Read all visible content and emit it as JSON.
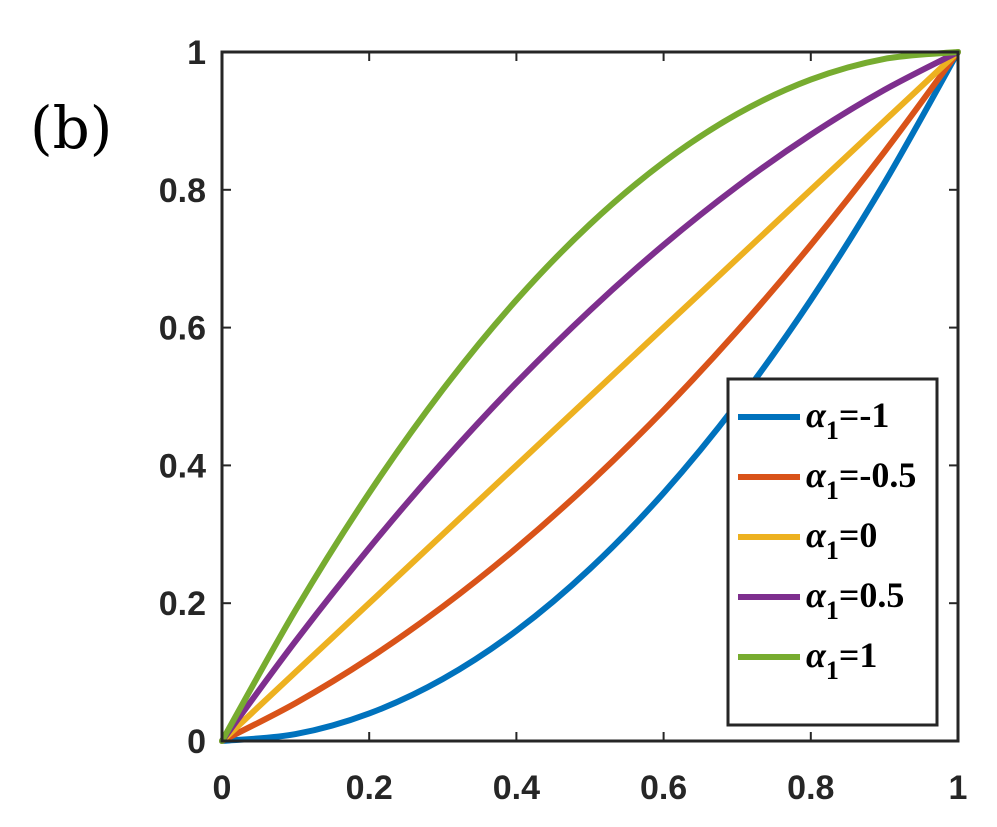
{
  "panel_label": "(b)",
  "chart_data": {
    "type": "line",
    "title": "",
    "xlabel": "",
    "ylabel": "",
    "xlim": [
      0,
      1
    ],
    "ylim": [
      0,
      1
    ],
    "x_ticks": [
      "0",
      "0.2",
      "0.4",
      "0.6",
      "0.8",
      "1"
    ],
    "y_ticks": [
      "0",
      "0.2",
      "0.4",
      "0.6",
      "0.8",
      "1"
    ],
    "grid": false,
    "legend_position": "bottom-right",
    "x": [
      0,
      0.1,
      0.2,
      0.3,
      0.4,
      0.5,
      0.6,
      0.7,
      0.8,
      0.9,
      1.0
    ],
    "series": [
      {
        "name": "α₁=-1",
        "legend_symbol": "α",
        "legend_subscript": "1",
        "legend_value": "=-1",
        "color": "#0072BD",
        "values": [
          0,
          0.01,
          0.04,
          0.09,
          0.16,
          0.25,
          0.36,
          0.49,
          0.64,
          0.81,
          1.0
        ]
      },
      {
        "name": "α₁=-0.5",
        "legend_symbol": "α",
        "legend_subscript": "1",
        "legend_value": "=-0.5",
        "color": "#D95319",
        "values": [
          0,
          0.055,
          0.12,
          0.195,
          0.28,
          0.375,
          0.48,
          0.595,
          0.72,
          0.855,
          1.0
        ]
      },
      {
        "name": "α₁=0",
        "legend_symbol": "α",
        "legend_subscript": "1",
        "legend_value": "=0",
        "color": "#EDB120",
        "values": [
          0,
          0.1,
          0.2,
          0.3,
          0.4,
          0.5,
          0.6,
          0.7,
          0.8,
          0.9,
          1.0
        ]
      },
      {
        "name": "α₁=0.5",
        "legend_symbol": "α",
        "legend_subscript": "1",
        "legend_value": "=0.5",
        "color": "#7E2F8E",
        "values": [
          0,
          0.145,
          0.28,
          0.405,
          0.52,
          0.625,
          0.72,
          0.805,
          0.88,
          0.945,
          1.0
        ]
      },
      {
        "name": "α₁=1",
        "legend_symbol": "α",
        "legend_subscript": "1",
        "legend_value": "=1",
        "color": "#77AC30",
        "values": [
          0,
          0.19,
          0.36,
          0.51,
          0.64,
          0.75,
          0.84,
          0.91,
          0.96,
          0.99,
          1.0
        ]
      }
    ]
  }
}
